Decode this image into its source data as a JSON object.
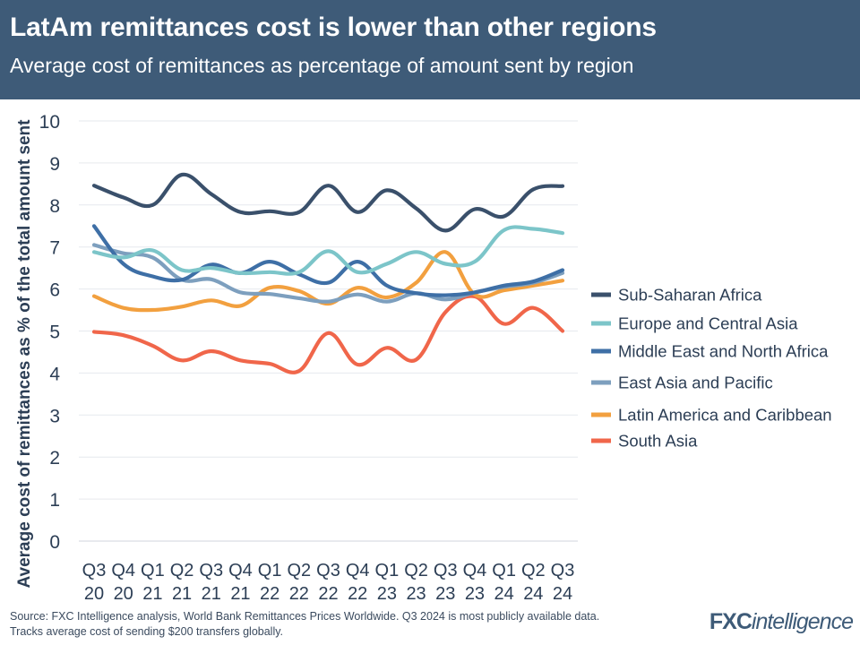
{
  "header": {
    "title": "LatAm remittances cost is lower than other regions",
    "subtitle": "Average cost of remittances as percentage of amount sent by region"
  },
  "footer": {
    "source_line1": "Source: FXC Intelligence analysis, World Bank Remittances Prices Worldwide. Q3 2024 is most publicly available data.",
    "source_line2": "Tracks average cost of sending $200 transfers globally."
  },
  "logo": {
    "part1": "FXC",
    "part2": "intelligence"
  },
  "chart_data": {
    "type": "line",
    "title": "LatAm remittances cost is lower than other regions",
    "ylabel": "Average cost of remittances as % of the total amount sent",
    "xlabel": "",
    "ylim": [
      0,
      10
    ],
    "yticks": [
      0,
      1,
      2,
      3,
      4,
      5,
      6,
      7,
      8,
      9,
      10
    ],
    "grid": true,
    "legend_position": "right",
    "categories": [
      {
        "q": "Q3",
        "y": "20"
      },
      {
        "q": "Q4",
        "y": "20"
      },
      {
        "q": "Q1",
        "y": "21"
      },
      {
        "q": "Q2",
        "y": "21"
      },
      {
        "q": "Q3",
        "y": "21"
      },
      {
        "q": "Q4",
        "y": "21"
      },
      {
        "q": "Q1",
        "y": "22"
      },
      {
        "q": "Q2",
        "y": "22"
      },
      {
        "q": "Q3",
        "y": "22"
      },
      {
        "q": "Q4",
        "y": "22"
      },
      {
        "q": "Q1",
        "y": "23"
      },
      {
        "q": "Q2",
        "y": "23"
      },
      {
        "q": "Q3",
        "y": "23"
      },
      {
        "q": "Q4",
        "y": "23"
      },
      {
        "q": "Q1",
        "y": "24"
      },
      {
        "q": "Q2",
        "y": "24"
      },
      {
        "q": "Q3",
        "y": "24"
      }
    ],
    "series": [
      {
        "name": "Sub-Saharan Africa",
        "color": "#3a506b",
        "values": [
          8.46,
          8.18,
          8.0,
          8.72,
          8.26,
          7.83,
          7.85,
          7.83,
          8.46,
          7.83,
          8.35,
          7.92,
          7.39,
          7.9,
          7.73,
          8.37,
          8.45
        ]
      },
      {
        "name": "Europe and Central Asia",
        "color": "#7cc5c9",
        "values": [
          6.88,
          6.75,
          6.92,
          6.45,
          6.5,
          6.38,
          6.4,
          6.4,
          6.9,
          6.4,
          6.6,
          6.88,
          6.6,
          6.65,
          7.4,
          7.43,
          7.33
        ]
      },
      {
        "name": "Middle East and North Africa",
        "color": "#3e6fa6",
        "values": [
          7.5,
          6.6,
          6.3,
          6.22,
          6.58,
          6.38,
          6.65,
          6.35,
          6.15,
          6.65,
          6.08,
          5.9,
          5.85,
          5.92,
          6.08,
          6.18,
          6.45
        ]
      },
      {
        "name": "East Asia and Pacific",
        "color": "#7d9fbe",
        "values": [
          7.05,
          6.85,
          6.75,
          6.22,
          6.23,
          5.92,
          5.88,
          5.78,
          5.7,
          5.87,
          5.7,
          5.9,
          5.75,
          5.92,
          6.05,
          6.15,
          6.38
        ]
      },
      {
        "name": "Latin America and Caribbean",
        "color": "#f2a03f",
        "values": [
          5.83,
          5.55,
          5.5,
          5.58,
          5.73,
          5.6,
          6.03,
          5.95,
          5.65,
          6.03,
          5.8,
          6.15,
          6.88,
          5.87,
          5.97,
          6.08,
          6.2
        ]
      },
      {
        "name": "South Asia",
        "color": "#f0664a",
        "values": [
          4.98,
          4.9,
          4.65,
          4.3,
          4.52,
          4.3,
          4.22,
          4.05,
          4.95,
          4.2,
          4.6,
          4.32,
          5.45,
          5.82,
          5.17,
          5.55,
          5.0
        ]
      }
    ]
  }
}
